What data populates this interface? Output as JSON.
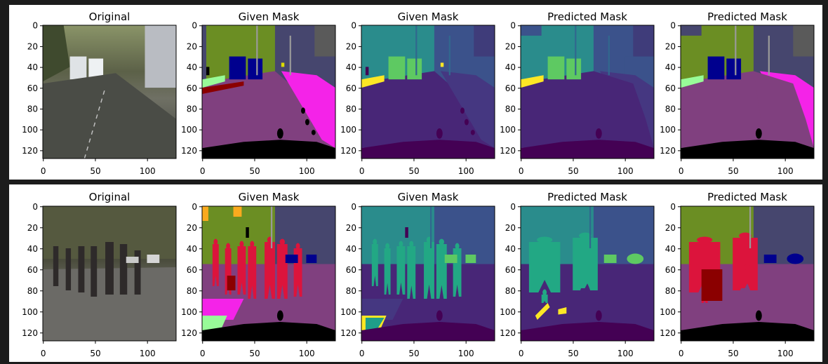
{
  "chart_data": [
    {
      "type": "image-grid",
      "row": 1,
      "panels": [
        {
          "title": "Original",
          "kind": "photo",
          "scene": "street-vans"
        },
        {
          "title": "Given Mask",
          "kind": "mask-color",
          "scene": "street-vans"
        },
        {
          "title": "Given Mask",
          "kind": "mask-viridis",
          "scene": "street-vans"
        },
        {
          "title": "Predicted Mask",
          "kind": "pred-viridis",
          "scene": "street-vans"
        },
        {
          "title": "Predicted Mask",
          "kind": "pred-color",
          "scene": "street-vans"
        }
      ],
      "x_ticks": [
        0,
        50,
        100
      ],
      "y_ticks": [
        0,
        20,
        40,
        60,
        80,
        100,
        120
      ],
      "xlim": [
        0,
        128
      ],
      "ylim": [
        128,
        0
      ]
    },
    {
      "type": "image-grid",
      "row": 2,
      "panels": [
        {
          "title": "Original",
          "kind": "photo",
          "scene": "pedestrians"
        },
        {
          "title": "Given Mask",
          "kind": "mask-color",
          "scene": "pedestrians"
        },
        {
          "title": "Given Mask",
          "kind": "mask-viridis",
          "scene": "pedestrians"
        },
        {
          "title": "Predicted Mask",
          "kind": "pred-viridis",
          "scene": "pedestrians"
        },
        {
          "title": "Predicted Mask",
          "kind": "pred-color",
          "scene": "pedestrians"
        }
      ],
      "x_ticks": [
        0,
        50,
        100
      ],
      "y_ticks": [
        0,
        20,
        40,
        60,
        80,
        100,
        120
      ],
      "xlim": [
        0,
        128
      ],
      "ylim": [
        128,
        0
      ]
    }
  ],
  "palettes": {
    "color": {
      "sky": "#5a5a5a",
      "veg": "#6b8e23",
      "building": "#46466e",
      "car": "#00008e",
      "road": "#80407f",
      "sidewalk": "#f423e8",
      "person": "#dc143c",
      "terrain": "#98fb98",
      "egocar": "#000000",
      "pole": "#999999",
      "sign": "#dcdc00",
      "wall": "#8b0000",
      "orange": "#faaa1e"
    },
    "viridis": {
      "sky": "#3f3c7a",
      "veg": "#2a8c8c",
      "building": "#3b528b",
      "car": "#5ec962",
      "road": "#482677",
      "sidewalk": "#453781",
      "person": "#22a884",
      "terrain": "#1f9e89",
      "egocar": "#440154",
      "pole": "#31688e",
      "sign": "#fde725",
      "wall": "#443983",
      "orange": "#fde725"
    }
  }
}
